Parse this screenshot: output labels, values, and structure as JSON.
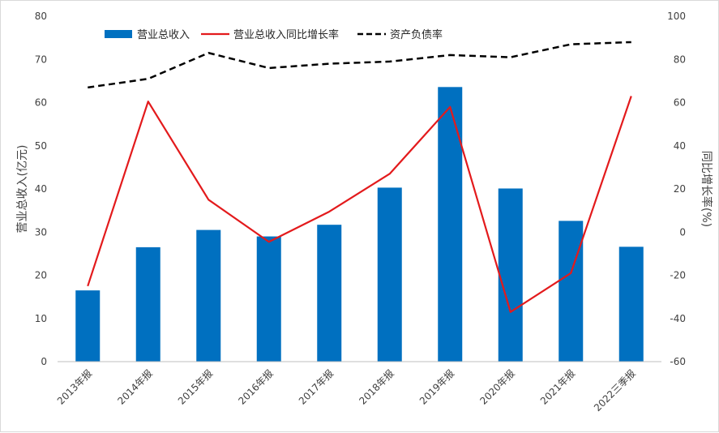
{
  "chart_data": {
    "type": "bar",
    "categories": [
      "2013年报",
      "2014年报",
      "2015年报",
      "2016年报",
      "2017年报",
      "2018年报",
      "2019年报",
      "2020年报",
      "2021年报",
      "2022三季报"
    ],
    "series": [
      {
        "name": "营业总收入",
        "type": "bar",
        "axis": "left",
        "color": "#0070c0",
        "values": [
          16.5,
          26.5,
          30.5,
          29.0,
          31.7,
          40.3,
          63.6,
          40.1,
          32.6,
          26.6
        ]
      },
      {
        "name": "营业总收入同比增长率",
        "type": "line",
        "axis": "right",
        "color": "#e31a1c",
        "values": [
          -25,
          60.5,
          15,
          -4.5,
          9.5,
          27,
          58,
          -37,
          -19,
          63
        ]
      },
      {
        "name": "资产负债率",
        "type": "line",
        "axis": "right",
        "dash": true,
        "color": "#000000",
        "values": [
          67,
          71,
          83,
          76,
          78,
          79,
          82,
          81,
          87,
          88
        ]
      }
    ],
    "ylabel": "营业总收入(亿元)",
    "y2label": "同比增长率(%)",
    "ylim": [
      0,
      80
    ],
    "y2lim": [
      -60,
      100
    ],
    "yticks": [
      "0",
      "10",
      "20",
      "30",
      "40",
      "50",
      "60",
      "70",
      "80"
    ],
    "y2ticks": [
      "-60",
      "-40",
      "-20",
      "0",
      "20",
      "40",
      "60",
      "80",
      "100"
    ],
    "legend": "top",
    "grid": false
  }
}
